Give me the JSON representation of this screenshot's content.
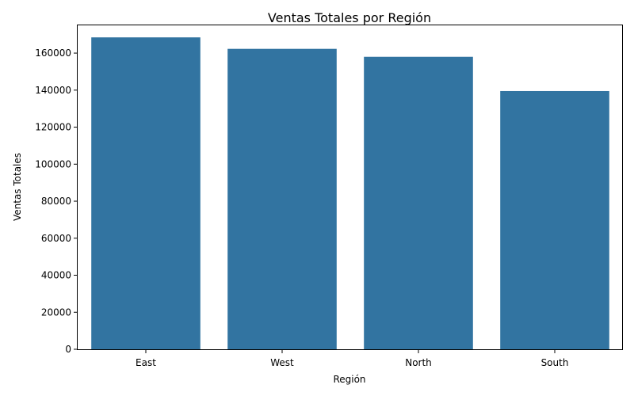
{
  "chart_data": {
    "type": "bar",
    "title": "Ventas Totales por Región",
    "xlabel": "Región",
    "ylabel": "Ventas Totales",
    "categories": [
      "East",
      "West",
      "North",
      "South"
    ],
    "values": [
      168500,
      162300,
      158000,
      139500
    ],
    "ylim": [
      0,
      175000
    ],
    "yticks": [
      0,
      20000,
      40000,
      60000,
      80000,
      100000,
      120000,
      140000,
      160000
    ],
    "bar_color": "#3274a1",
    "grid": false,
    "legend": "none"
  }
}
